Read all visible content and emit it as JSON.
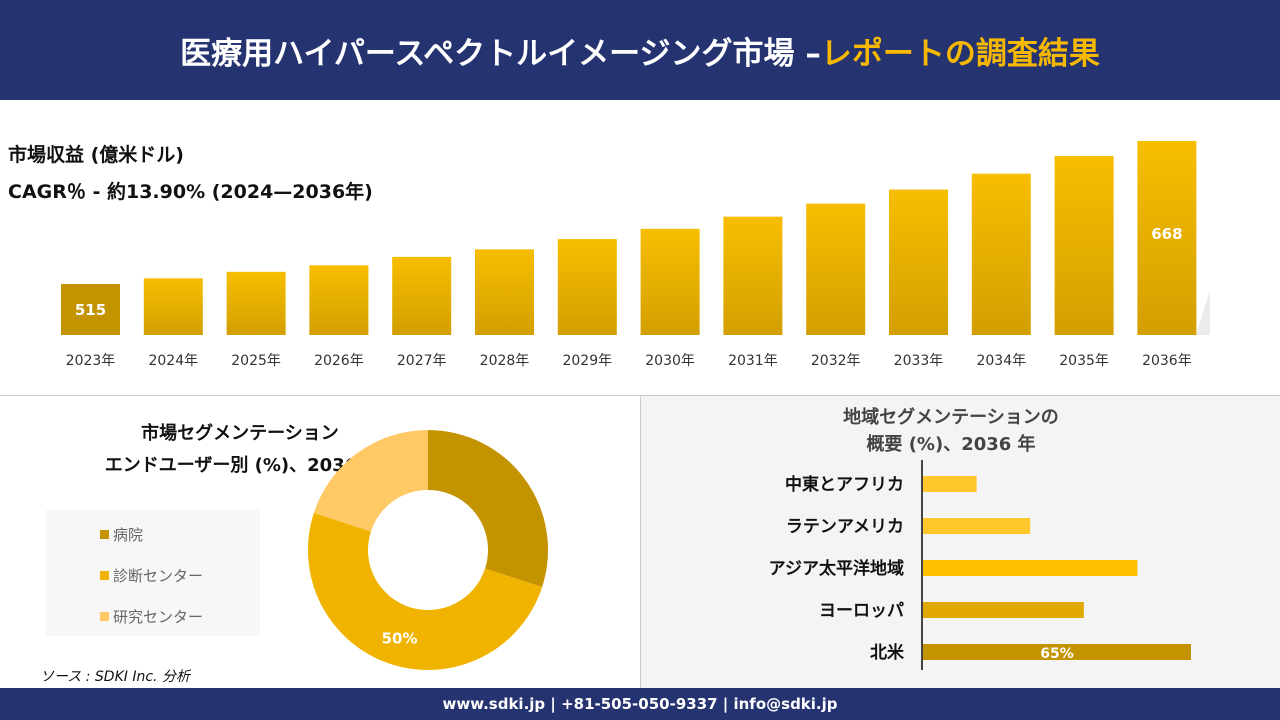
{
  "header": {
    "title_main": "医療用ハイパースペクトルイメージング市場 –",
    "title_accent": "レポートの調査結果"
  },
  "revenue": {
    "title": "市場収益 (億米ドル)",
    "cagr": "CAGR％ - 約13.90% (2024—2036年)"
  },
  "segment": {
    "title_line1": "市場セグメンテーション",
    "title_line2": "エンドユーザー別 (%)、2036年"
  },
  "region": {
    "title_line1": "地域セグメンテーションの",
    "title_line2": "概要 (%)、2036 年"
  },
  "source": "ソース : SDKI Inc. 分析",
  "footer": "www.sdki.jp | +81-505-050-9337 | info@sdki.jp",
  "chart_data": [
    {
      "type": "bar",
      "title": "市場収益 (億米ドル)",
      "categories": [
        "2023年",
        "2024年",
        "2025年",
        "2026年",
        "2027年",
        "2028年",
        "2029年",
        "2030年",
        "2031年",
        "2032年",
        "2033年",
        "2034年",
        "2035年",
        "2036年"
      ],
      "values": [
        515,
        521,
        528,
        535,
        544,
        552,
        563,
        574,
        587,
        601,
        616,
        633,
        652,
        668
      ],
      "data_labels": {
        "0": "515",
        "13": "668"
      },
      "ylim": [
        460,
        680
      ],
      "grid": false,
      "colors": [
        "#c49300",
        "#f5bb00"
      ]
    },
    {
      "type": "pie",
      "subtype": "donut",
      "title": "市場セグメンテーション エンドユーザー別 (%)、2036年",
      "labels": [
        "病院",
        "診断センター",
        "研究センター"
      ],
      "values": [
        30,
        50,
        20
      ],
      "data_labels": {
        "1": "50%"
      },
      "colors": [
        "#c49300",
        "#f0b400",
        "#ffc966"
      ],
      "legend": "left"
    },
    {
      "type": "bar",
      "orientation": "horizontal",
      "title": "地域セグメンテーションの 概要 (%)、2036 年",
      "categories": [
        "中東とアフリカ",
        "ラテンアメリカ",
        "アジア太平洋地域",
        "ヨーロッパ",
        "北米"
      ],
      "values": [
        13,
        26,
        52,
        39,
        65
      ],
      "data_labels": {
        "4": "65%"
      },
      "colors": [
        "#ffc72c",
        "#ffc72c",
        "#ffc000",
        "#e0a800",
        "#c49300"
      ]
    }
  ]
}
